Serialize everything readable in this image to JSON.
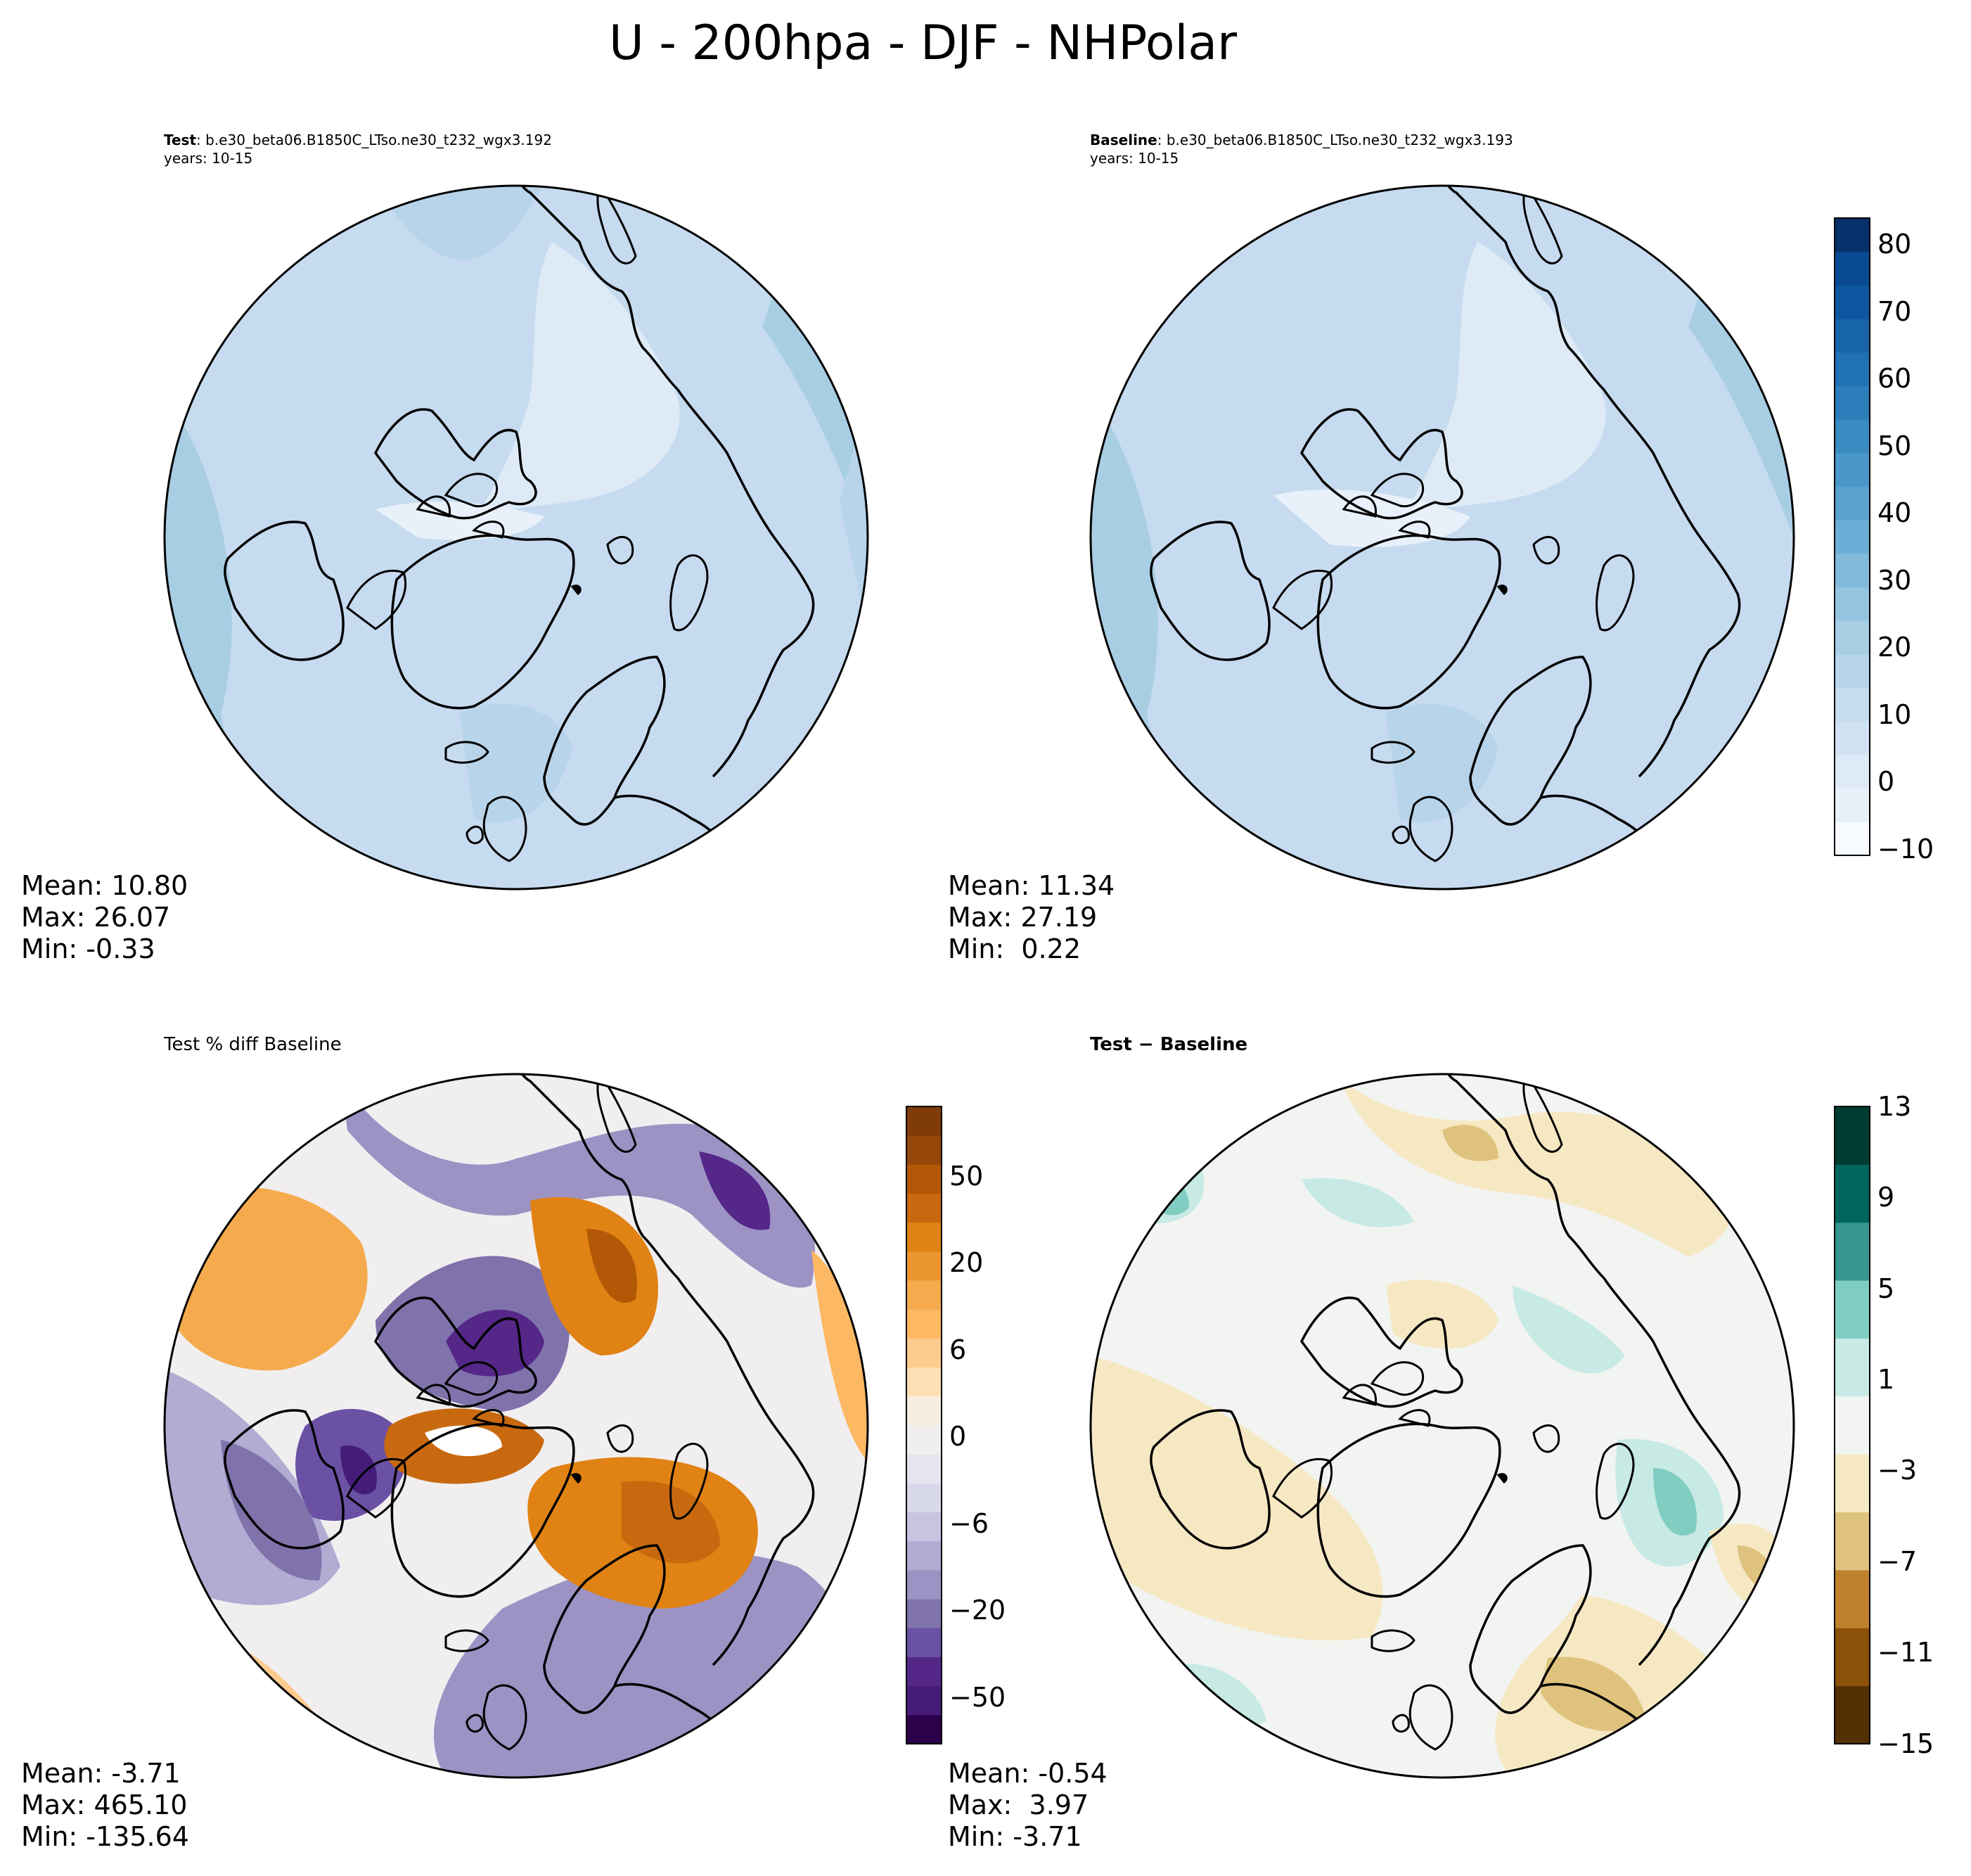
{
  "figure": {
    "title": "U - 200hpa - DJF - NHPolar"
  },
  "panels": {
    "test": {
      "label": "Test",
      "case": ": b.e30_beta06.B1850C_LTso.ne30_t232_wgx3.192",
      "years": "years: 10-15",
      "stats": {
        "mean": "Mean: 10.80",
        "max": "Max: 26.07",
        "min": "Min: -0.33"
      }
    },
    "baseline": {
      "label": "Baseline",
      "case": ": b.e30_beta06.B1850C_LTso.ne30_t232_wgx3.193",
      "years": "years: 10-15",
      "stats": {
        "mean": "Mean: 11.34",
        "max": "Max: 27.19",
        "min": "Min:  0.22"
      }
    },
    "pctdiff": {
      "title": "Test % diff Baseline",
      "stats": {
        "mean": "Mean: -3.71",
        "max": "Max: 465.10",
        "min": "Min: -135.64"
      }
    },
    "diff": {
      "title": "Test − Baseline",
      "stats": {
        "mean": "Mean: -0.54",
        "max": "Max:  3.97",
        "min": "Min: -3.71"
      }
    }
  },
  "colorbars": {
    "field": {
      "ticks": [
        "80",
        "70",
        "60",
        "50",
        "40",
        "30",
        "20",
        "10",
        "0",
        "−10"
      ],
      "levels": [
        -10,
        -5,
        0,
        5,
        10,
        15,
        20,
        25,
        30,
        35,
        40,
        45,
        50,
        55,
        60,
        65,
        70,
        75,
        80,
        85
      ],
      "colors": [
        "#f7fbff",
        "#e8f1fa",
        "#deebf7",
        "#d0e2f2",
        "#c6dbef",
        "#b7d4ea",
        "#a8cee4",
        "#94c4df",
        "#82badb",
        "#6baed6",
        "#5aa2cf",
        "#4a98c9",
        "#3a8bc1",
        "#2d7dbb",
        "#2171b5",
        "#1764ab",
        "#0d57a1",
        "#084b93",
        "#08306b"
      ]
    },
    "pctdiff": {
      "ticks": [
        "50",
        "20",
        "6",
        "0",
        "−6",
        "−20",
        "−50"
      ],
      "colors": [
        "#7f3b08",
        "#95470a",
        "#b35806",
        "#c8690f",
        "#e08214",
        "#eb9631",
        "#f5ab4d",
        "#fdb863",
        "#fdcb8d",
        "#fee0b6",
        "#f7eee2",
        "#f1eef0",
        "#e6e4ef",
        "#d8daeb",
        "#c7c4e1",
        "#b2abd2",
        "#9c92c4",
        "#8073ac",
        "#6a51a3",
        "#542788",
        "#451c79",
        "#2d004b"
      ]
    },
    "diff": {
      "ticks": [
        "13",
        "9",
        "5",
        "1",
        "−3",
        "−7",
        "−11",
        "−15"
      ],
      "colors": [
        "#003c30",
        "#01665e",
        "#35978f",
        "#80cdc1",
        "#c7eae5",
        "#f2f4f2",
        "#f6e8c3",
        "#dfc27d",
        "#bf812d",
        "#8c510a",
        "#543005"
      ]
    }
  }
}
